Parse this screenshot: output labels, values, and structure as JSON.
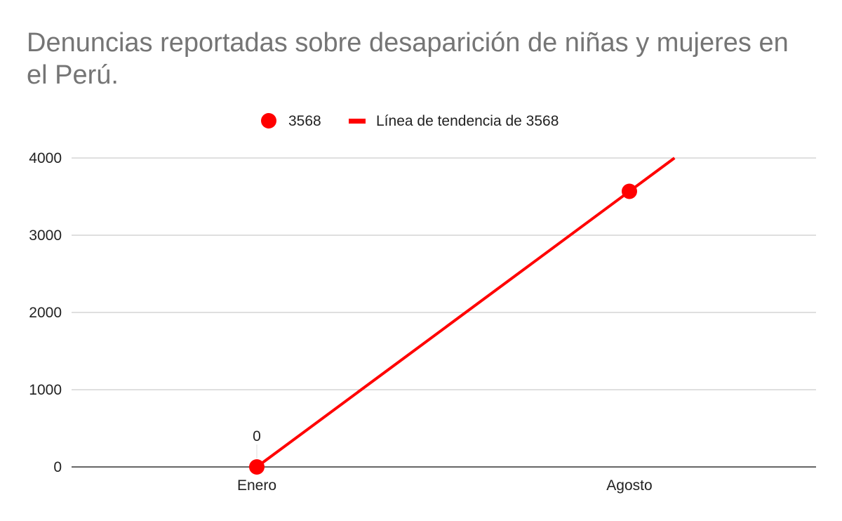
{
  "chart_data": {
    "type": "scatter",
    "title": "Denuncias reportadas sobre desaparición de niñas y mujeres en el Perú.",
    "categories": [
      "Enero",
      "Agosto"
    ],
    "series": [
      {
        "name": "3568",
        "values": [
          0,
          3568
        ],
        "color": "#ff0000",
        "data_labels": [
          "0",
          ""
        ]
      }
    ],
    "trendline": {
      "name": "Línea de tendencia de 3568",
      "type": "linear",
      "color": "#ff0000"
    },
    "y_ticks": [
      0,
      1000,
      2000,
      3000,
      4000
    ],
    "ylim": [
      0,
      4000
    ],
    "grid": true,
    "legend_position": "top"
  }
}
